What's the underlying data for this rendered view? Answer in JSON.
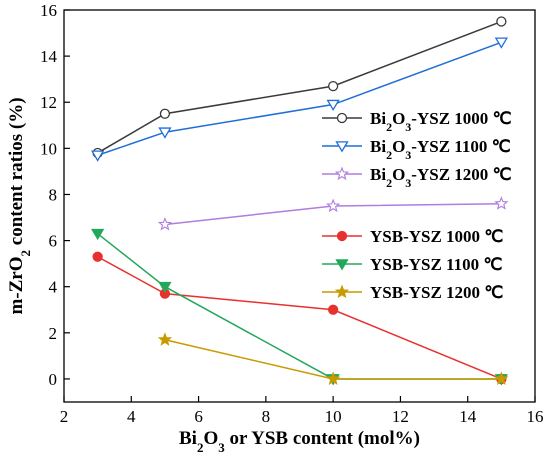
{
  "chart_data": {
    "type": "line",
    "xlabel": {
      "parts": [
        [
          "Bi",
          ""
        ],
        [
          "2",
          "sub"
        ],
        [
          "O",
          ""
        ],
        [
          "3",
          "sub"
        ],
        [
          " or YSB content (mol%)",
          ""
        ]
      ]
    },
    "ylabel": {
      "parts": [
        [
          "m-ZrO",
          ""
        ],
        [
          "2",
          "sub"
        ],
        [
          " content ratios (%)",
          ""
        ]
      ]
    },
    "xlim": [
      2,
      16
    ],
    "ylim": [
      -1,
      16
    ],
    "xticks": [
      2,
      4,
      6,
      8,
      10,
      12,
      14,
      16
    ],
    "yticks": [
      0,
      2,
      4,
      6,
      8,
      10,
      12,
      14,
      16
    ],
    "grid": false,
    "legend_groups": [
      {
        "placement": "right-upper",
        "series": [
          0,
          1,
          2
        ]
      },
      {
        "placement": "right-middle",
        "series": [
          3,
          4,
          5
        ]
      }
    ],
    "series": [
      {
        "name": {
          "parts": [
            [
              "Bi",
              ""
            ],
            [
              "2",
              "sub"
            ],
            [
              "O",
              ""
            ],
            [
              "3",
              "sub"
            ],
            [
              "-YSZ 1000 ℃",
              ""
            ]
          ]
        },
        "color": "#3a3a3a",
        "marker": "circle-open",
        "x": [
          3,
          5,
          10,
          15
        ],
        "y": [
          9.8,
          11.5,
          12.7,
          15.5
        ]
      },
      {
        "name": {
          "parts": [
            [
              "Bi",
              ""
            ],
            [
              "2",
              "sub"
            ],
            [
              "O",
              ""
            ],
            [
              "3",
              "sub"
            ],
            [
              "-YSZ 1100 ℃",
              ""
            ]
          ]
        },
        "color": "#1f6fd6",
        "marker": "triangle-down-open",
        "x": [
          3,
          5,
          10,
          15
        ],
        "y": [
          9.7,
          10.7,
          11.9,
          14.6
        ]
      },
      {
        "name": {
          "parts": [
            [
              "Bi",
              ""
            ],
            [
              "2",
              "sub"
            ],
            [
              "O",
              ""
            ],
            [
              "3",
              "sub"
            ],
            [
              "-YSZ 1200 ℃",
              ""
            ]
          ]
        },
        "color": "#b07ce0",
        "marker": "star-open",
        "x": [
          5,
          10,
          15
        ],
        "y": [
          6.7,
          7.5,
          7.6
        ]
      },
      {
        "name": {
          "parts": [
            [
              "YSB-YSZ 1000 ℃",
              ""
            ]
          ]
        },
        "color": "#e8312e",
        "marker": "circle-filled",
        "x": [
          3,
          5,
          10,
          15
        ],
        "y": [
          5.3,
          3.7,
          3.0,
          0.0
        ]
      },
      {
        "name": {
          "parts": [
            [
              "YSB-YSZ 1100 ℃",
              ""
            ]
          ]
        },
        "color": "#21a85a",
        "marker": "triangle-down-filled",
        "x": [
          3,
          5,
          10,
          15
        ],
        "y": [
          6.3,
          4.0,
          0.0,
          0.0
        ]
      },
      {
        "name": {
          "parts": [
            [
              "YSB-YSZ 1200 ℃",
              ""
            ]
          ]
        },
        "color": "#c99a00",
        "marker": "star-filled",
        "x": [
          5,
          10,
          15
        ],
        "y": [
          1.7,
          0.0,
          0.0
        ]
      }
    ]
  }
}
